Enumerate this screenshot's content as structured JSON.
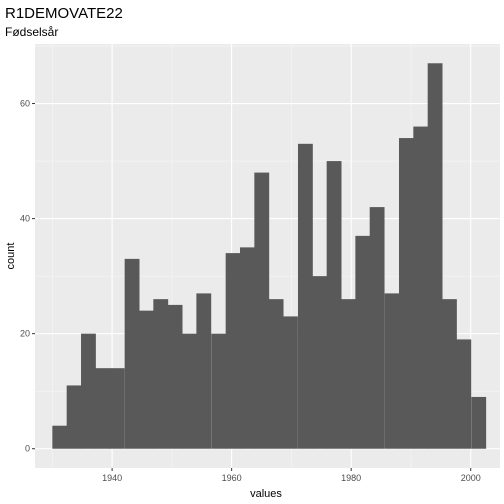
{
  "chart_data": {
    "type": "bar",
    "title": "R1DEMOVATE22",
    "subtitle": "Fødselsår",
    "xlabel": "values",
    "ylabel": "count",
    "xlim": [
      1927.1,
      2004.9
    ],
    "ylim": [
      -3.35,
      70.35
    ],
    "x_ticks": [
      1940,
      1960,
      1980,
      2000
    ],
    "y_ticks": [
      0,
      20,
      40,
      60
    ],
    "grid": true,
    "bin_width": 2.414,
    "bins": [
      {
        "start": 1930.0,
        "count": 4
      },
      {
        "start": 1932.4,
        "count": 11
      },
      {
        "start": 1934.8,
        "count": 20
      },
      {
        "start": 1937.2,
        "count": 14
      },
      {
        "start": 1939.6,
        "count": 14
      },
      {
        "start": 1942.1,
        "count": 33
      },
      {
        "start": 1944.5,
        "count": 24
      },
      {
        "start": 1946.9,
        "count": 26
      },
      {
        "start": 1949.3,
        "count": 25
      },
      {
        "start": 1951.7,
        "count": 20
      },
      {
        "start": 1954.1,
        "count": 27
      },
      {
        "start": 1956.6,
        "count": 20
      },
      {
        "start": 1959.0,
        "count": 34
      },
      {
        "start": 1961.4,
        "count": 35
      },
      {
        "start": 1963.8,
        "count": 48
      },
      {
        "start": 1966.2,
        "count": 26
      },
      {
        "start": 1968.6,
        "count": 23
      },
      {
        "start": 1971.1,
        "count": 53
      },
      {
        "start": 1973.5,
        "count": 30
      },
      {
        "start": 1975.9,
        "count": 50
      },
      {
        "start": 1978.3,
        "count": 26
      },
      {
        "start": 1980.7,
        "count": 37
      },
      {
        "start": 1983.1,
        "count": 42
      },
      {
        "start": 1985.6,
        "count": 27
      },
      {
        "start": 1988.0,
        "count": 54
      },
      {
        "start": 1990.4,
        "count": 56
      },
      {
        "start": 1992.8,
        "count": 67
      },
      {
        "start": 1995.2,
        "count": 26
      },
      {
        "start": 1997.6,
        "count": 19
      },
      {
        "start": 2000.1,
        "count": 9
      }
    ],
    "colors": {
      "panel": "#ebebeb",
      "grid_major": "#ffffff",
      "bar": "#595959",
      "tick": "#333333"
    }
  }
}
